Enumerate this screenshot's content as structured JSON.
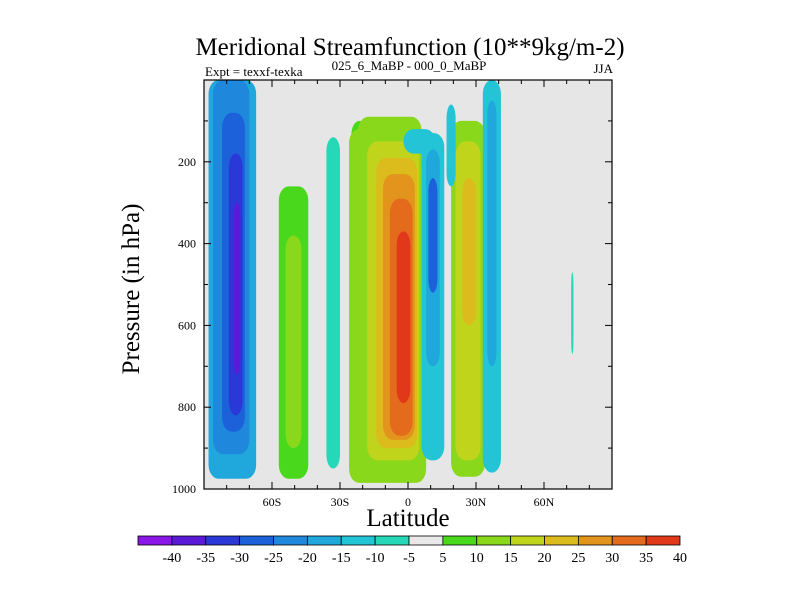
{
  "chart_data": {
    "type": "heatmap",
    "subtype": "filled-contour",
    "title": "Meridional Streamfunction (10**9kg/m-2)",
    "left_string": "Expt = texxf-texka",
    "center_string": "025_6_MaBP - 000_0_MaBP",
    "right_string": "JJA",
    "xlabel": "Latitude",
    "ylabel": "Pressure (in hPa)",
    "xlim": [
      -90,
      90
    ],
    "ylim": [
      1000,
      0
    ],
    "x_ticks": [
      {
        "value": -60,
        "label": "60S"
      },
      {
        "value": -30,
        "label": "30S"
      },
      {
        "value": 0,
        "label": "0"
      },
      {
        "value": 30,
        "label": "30N"
      },
      {
        "value": 60,
        "label": "60N"
      }
    ],
    "y_ticks": [
      {
        "value": 200,
        "label": "200"
      },
      {
        "value": 400,
        "label": "400"
      },
      {
        "value": 600,
        "label": "600"
      },
      {
        "value": 800,
        "label": "800"
      },
      {
        "value": 1000,
        "label": "1000"
      }
    ],
    "missing_color": "#e6e6e6",
    "levels": [
      -40,
      -35,
      -30,
      -25,
      -20,
      -15,
      -10,
      -5,
      5,
      10,
      15,
      20,
      25,
      30,
      35,
      40
    ],
    "level_labels": [
      "-40",
      "-35",
      "-30",
      "-25",
      "-20",
      "-15",
      "-10",
      "-5",
      "5",
      "10",
      "15",
      "20",
      "25",
      "30",
      "35",
      "40"
    ],
    "colors": [
      "#8a16e8",
      "#5a1ad8",
      "#2a38d8",
      "#1c60da",
      "#1f88dc",
      "#20a8dc",
      "#22c4d6",
      "#24d8b8",
      "#e8e8e8",
      "#4ad81c",
      "#8ad81c",
      "#c0d41c",
      "#dcbc1c",
      "#e2941c",
      "#e46a1c",
      "#e2381a"
    ],
    "cells": [
      {
        "lat": [
          -88,
          -67
        ],
        "p": [
          0,
          975
        ],
        "value": -17
      },
      {
        "lat": [
          -86,
          -70
        ],
        "p": [
          0,
          915
        ],
        "value": -22
      },
      {
        "lat": [
          -82,
          -72
        ],
        "p": [
          80,
          860
        ],
        "value": -27
      },
      {
        "lat": [
          -79,
          -73
        ],
        "p": [
          180,
          820
        ],
        "value": -32
      },
      {
        "lat": [
          -77,
          -74
        ],
        "p": [
          300,
          720
        ],
        "value": -37
      },
      {
        "lat": [
          -57,
          -44
        ],
        "p": [
          260,
          975
        ],
        "value": 9
      },
      {
        "lat": [
          -54,
          -47
        ],
        "p": [
          380,
          900
        ],
        "value": 13
      },
      {
        "lat": [
          -36,
          -30
        ],
        "p": [
          140,
          950
        ],
        "value": -9
      },
      {
        "lat": [
          -25,
          -18
        ],
        "p": [
          100,
          945
        ],
        "value": 8
      },
      {
        "lat": [
          -26,
          8
        ],
        "p": [
          120,
          985
        ],
        "value": 12
      },
      {
        "lat": [
          -22,
          6
        ],
        "p": [
          90,
          960
        ],
        "value": 14
      },
      {
        "lat": [
          -18,
          5
        ],
        "p": [
          150,
          930
        ],
        "value": 18
      },
      {
        "lat": [
          -14,
          4
        ],
        "p": [
          190,
          900
        ],
        "value": 23
      },
      {
        "lat": [
          -11,
          3
        ],
        "p": [
          230,
          880
        ],
        "value": 28
      },
      {
        "lat": [
          -8,
          2
        ],
        "p": [
          290,
          870
        ],
        "value": 33
      },
      {
        "lat": [
          -5,
          1
        ],
        "p": [
          370,
          790
        ],
        "value": 37
      },
      {
        "lat": [
          -2,
          12
        ],
        "p": [
          120,
          180
        ],
        "value": -13
      },
      {
        "lat": [
          6,
          16
        ],
        "p": [
          130,
          930
        ],
        "value": -12
      },
      {
        "lat": [
          8,
          14
        ],
        "p": [
          170,
          700
        ],
        "value": -20
      },
      {
        "lat": [
          9,
          13
        ],
        "p": [
          240,
          520
        ],
        "value": -30
      },
      {
        "lat": [
          19,
          34
        ],
        "p": [
          100,
          970
        ],
        "value": 11
      },
      {
        "lat": [
          21,
          32
        ],
        "p": [
          150,
          930
        ],
        "value": 16
      },
      {
        "lat": [
          24,
          30
        ],
        "p": [
          240,
          600
        ],
        "value": 23
      },
      {
        "lat": [
          17,
          21
        ],
        "p": [
          60,
          260
        ],
        "value": -11
      },
      {
        "lat": [
          33,
          41
        ],
        "p": [
          0,
          960
        ],
        "value": -13
      },
      {
        "lat": [
          35,
          39
        ],
        "p": [
          50,
          700
        ],
        "value": -17
      },
      {
        "lat": [
          72,
          73
        ],
        "p": [
          470,
          670
        ],
        "value": -8
      }
    ]
  }
}
